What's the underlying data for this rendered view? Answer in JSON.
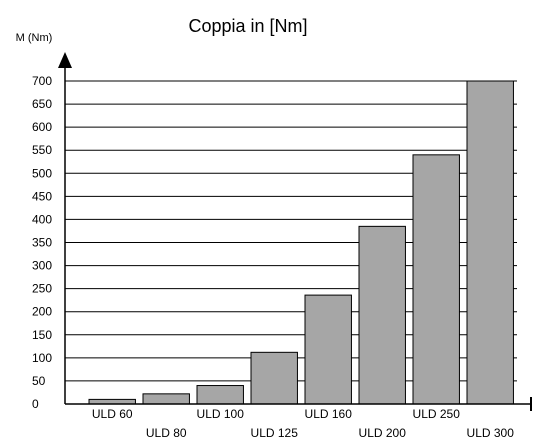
{
  "chart_data": {
    "type": "bar",
    "title": "Coppia in [Nm]",
    "xlabel": "",
    "ylabel": "M (Nm)",
    "categories": [
      "ULD 60",
      "ULD 80",
      "ULD 100",
      "ULD 125",
      "ULD 160",
      "ULD 200",
      "ULD 250",
      "ULD 300"
    ],
    "values": [
      10,
      22,
      40,
      112,
      236,
      385,
      540,
      700
    ],
    "ylim": [
      0,
      700
    ],
    "yticks": [
      0,
      50,
      100,
      150,
      200,
      250,
      300,
      350,
      400,
      450,
      500,
      550,
      600,
      650,
      700
    ],
    "grid": true,
    "legend": "none",
    "bar_color": "#a6a6a6",
    "bar_edge_color": "#000000"
  }
}
